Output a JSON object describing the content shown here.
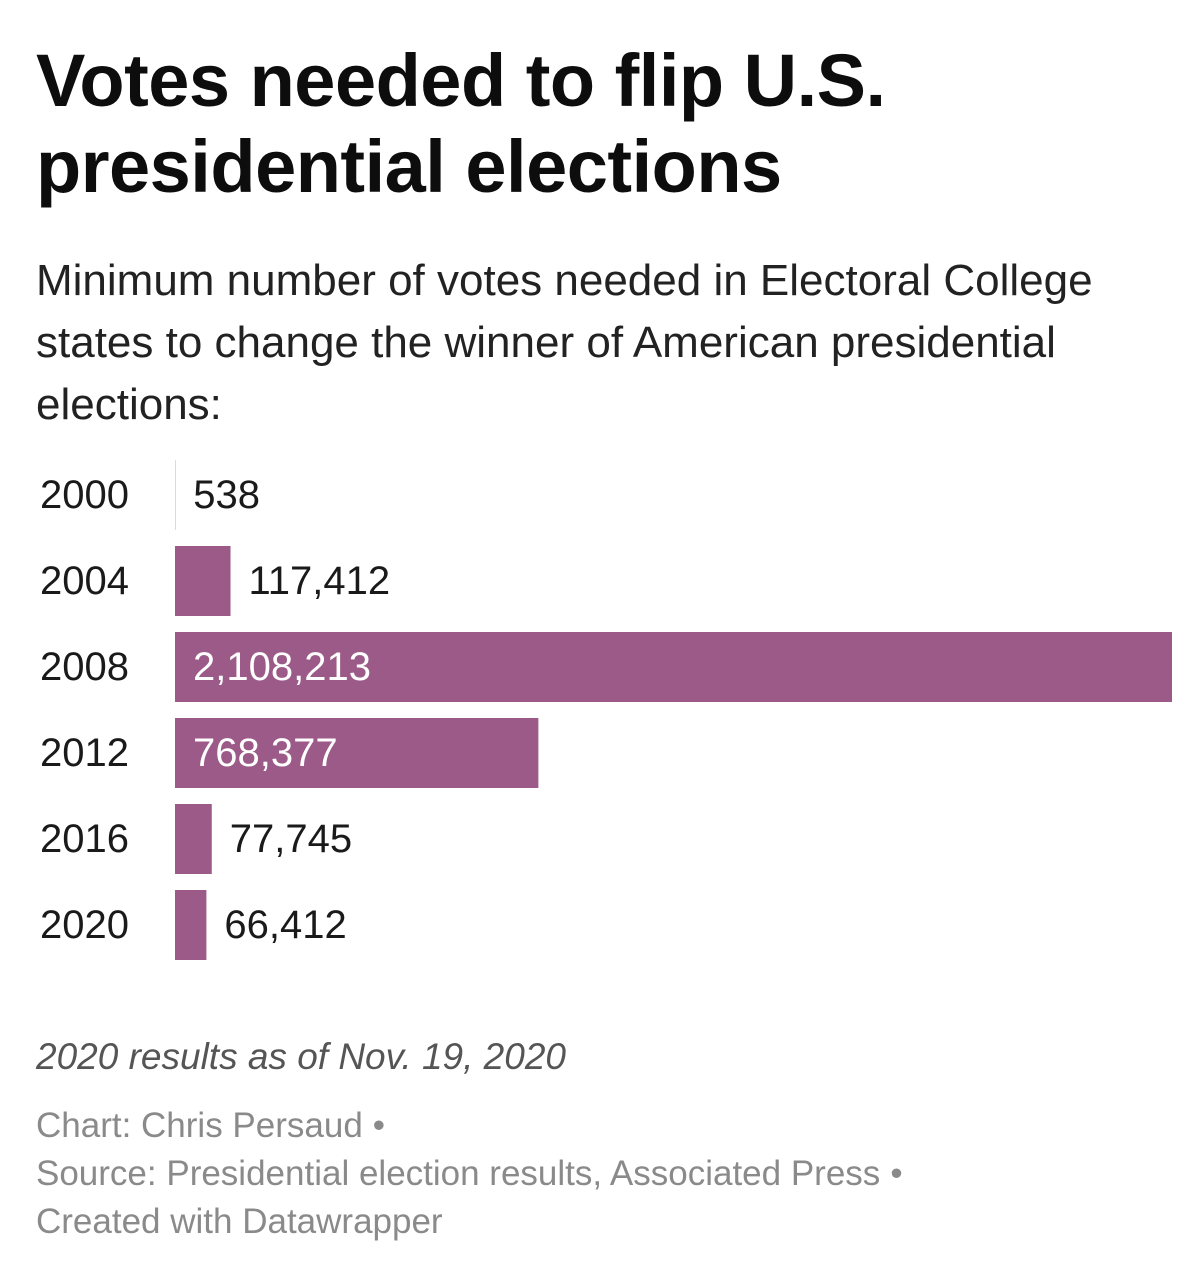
{
  "header": {
    "title": "Votes needed to flip U.S. presidential elections",
    "subtitle": "Minimum number of votes needed in Electoral College states to change the winner of American presidential elections:"
  },
  "chart_data": {
    "type": "bar",
    "orientation": "horizontal",
    "title": "Votes needed to flip U.S. presidential elections",
    "categories": [
      "2000",
      "2004",
      "2008",
      "2012",
      "2016",
      "2020"
    ],
    "values": [
      538,
      117412,
      2108213,
      768377,
      77745,
      66412
    ],
    "value_labels": [
      "538",
      "117,412",
      "2,108,213",
      "768,377",
      "77,745",
      "66,412"
    ],
    "xlim": [
      0,
      2108213
    ],
    "bar_color": "#9b5a88",
    "grid": false,
    "legend": "none"
  },
  "notes": {
    "note": "2020 results as of Nov. 19, 2020",
    "credit": "Chart: Chris Persaud",
    "source": "Source: Presidential election results, Associated Press",
    "created": "Created with Datawrapper",
    "separator": "•"
  },
  "colors": {
    "bar": "#9b5a88",
    "label_inside": "#ffffff",
    "label_outside": "#1a1a1a"
  }
}
